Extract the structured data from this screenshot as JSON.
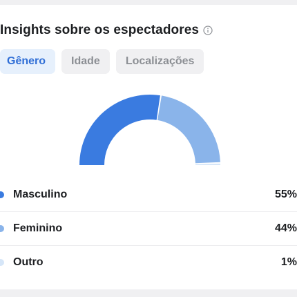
{
  "insights": {
    "title": "Insights sobre os espectadores",
    "info_icon": "info-circle-icon"
  },
  "tabs": [
    {
      "label": "Gênero",
      "active": true
    },
    {
      "label": "Idade",
      "active": false
    },
    {
      "label": "Localizações",
      "active": false
    }
  ],
  "chart_data": {
    "type": "pie",
    "style": "half-donut",
    "categories": [
      "Masculino",
      "Feminino",
      "Outro"
    ],
    "values": [
      55,
      44,
      1
    ],
    "colors": [
      "#3a7be0",
      "#8ab4ea",
      "#d6e6f8"
    ]
  },
  "legend": [
    {
      "label": "Masculino",
      "value": "55%",
      "color": "#3a7be0"
    },
    {
      "label": "Feminino",
      "value": "44%",
      "color": "#8ab4ea"
    },
    {
      "label": "Outro",
      "value": "1%",
      "color": "#d6e6f8"
    }
  ]
}
